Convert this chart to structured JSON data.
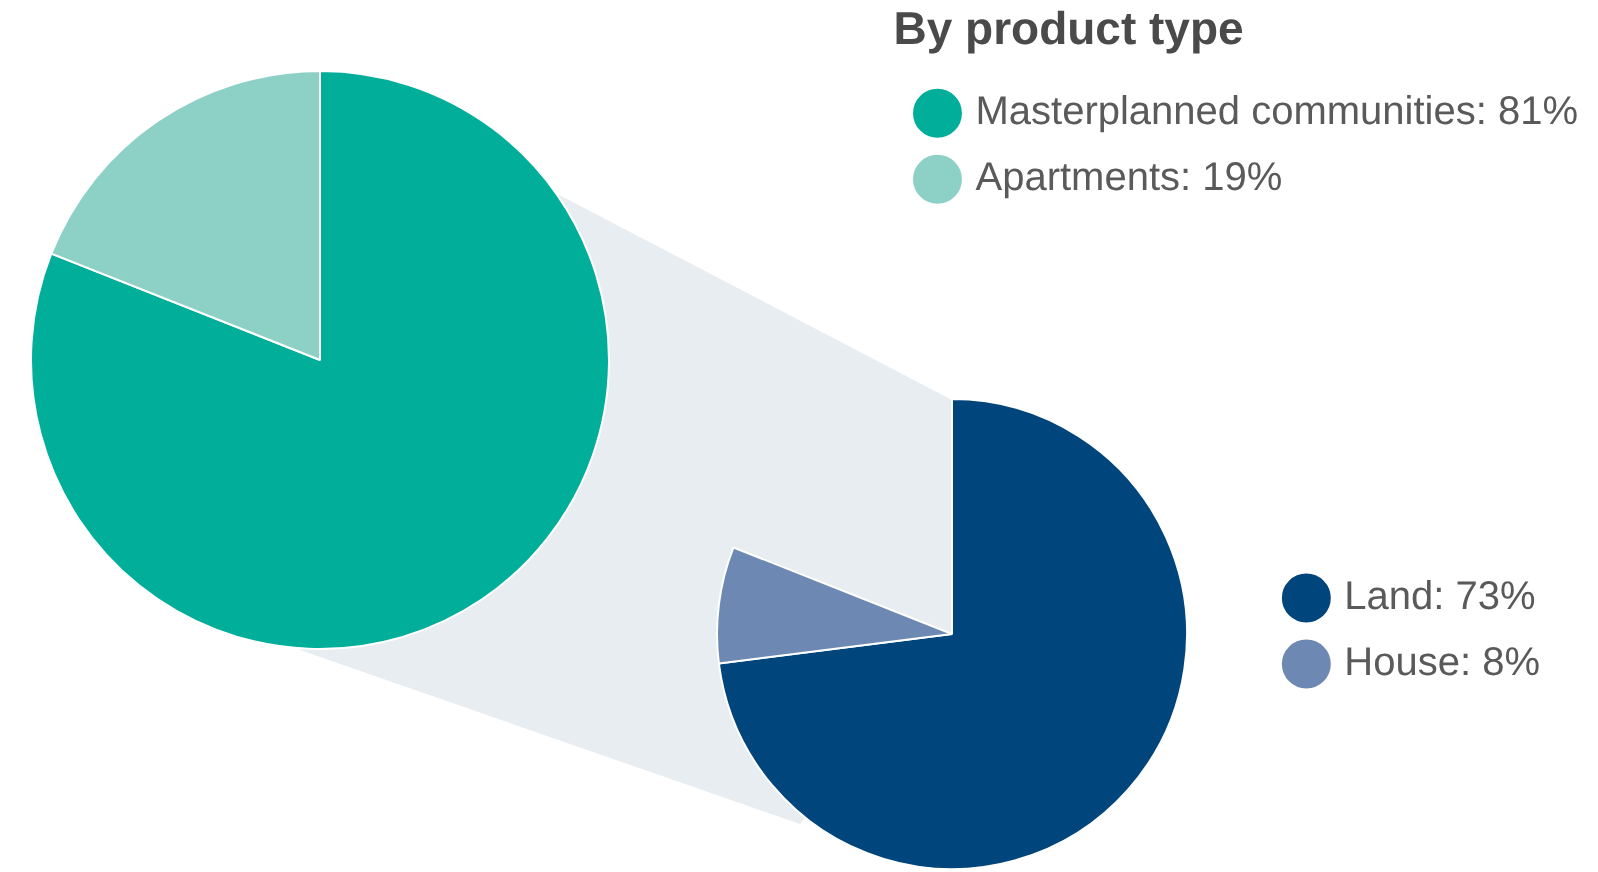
{
  "chart_data": [
    {
      "type": "pie",
      "legend_title": "By product type",
      "categories": [
        "Masterplanned communities: 81%",
        "Apartments: 19%"
      ],
      "values": [
        81,
        19
      ],
      "colors": [
        "#00ae99",
        "#8dd1c6"
      ],
      "legend": "top right"
    },
    {
      "type": "pie",
      "categories": [
        "Land: 73%",
        "House: 8%"
      ],
      "values": [
        73,
        8
      ],
      "colors": [
        "#00457c",
        "#6c88b3"
      ],
      "legend": "right"
    }
  ]
}
